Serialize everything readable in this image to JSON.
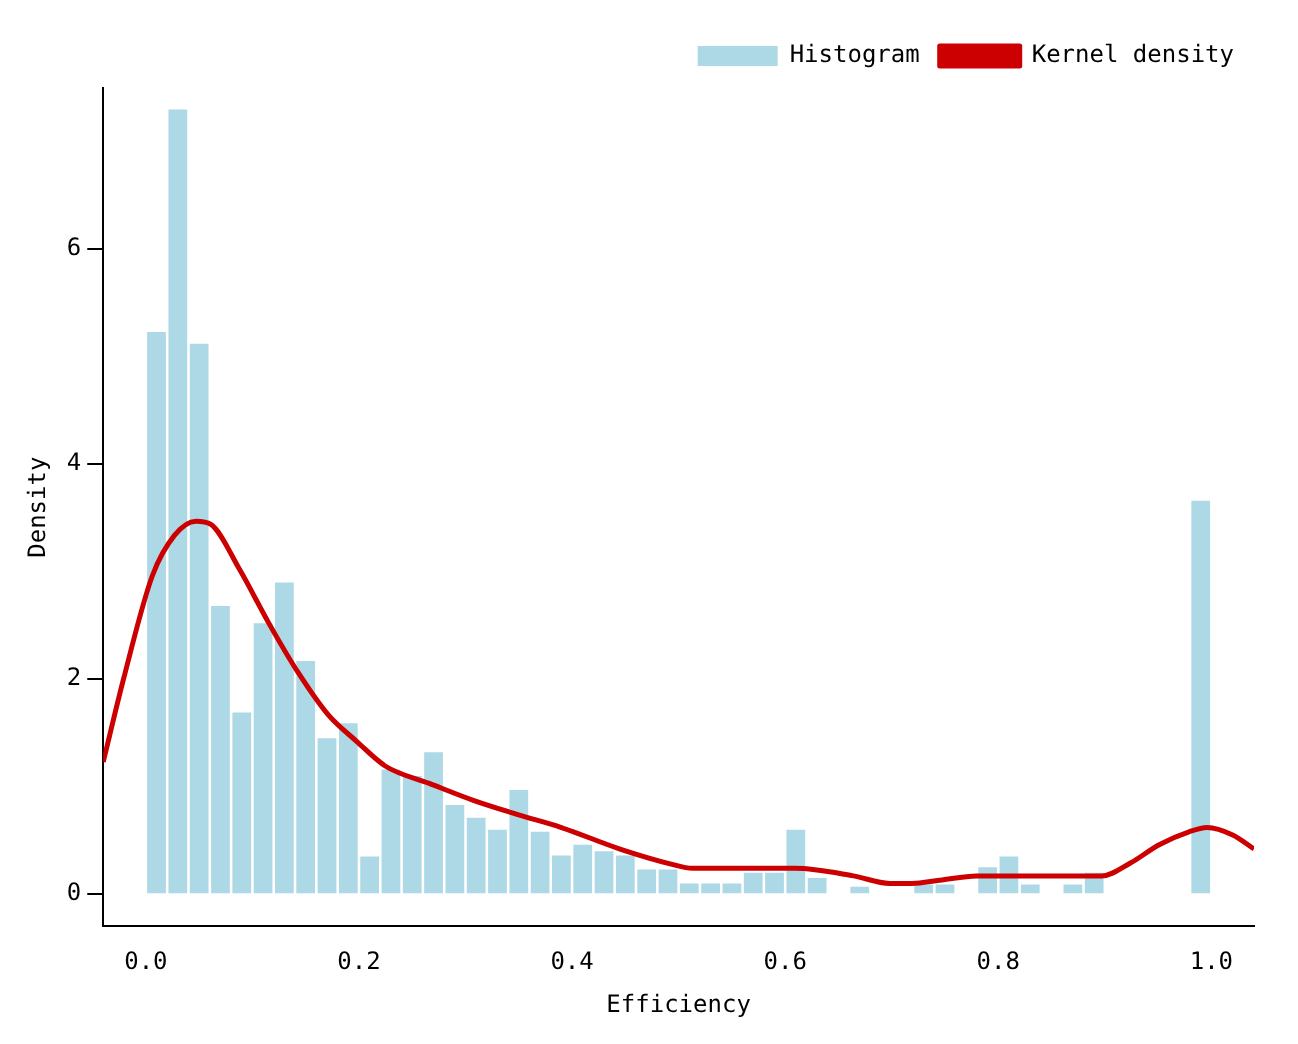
{
  "chart_data": {
    "type": "histogram",
    "xlabel": "Efficiency",
    "ylabel": "Density",
    "bins": [
      0,
      0.02,
      0.04,
      0.06,
      0.08,
      0.1,
      0.12,
      0.14,
      0.16,
      0.18,
      0.2,
      0.22,
      0.24,
      0.26,
      0.28,
      0.3,
      0.32,
      0.34,
      0.36,
      0.38,
      0.4,
      0.42,
      0.44,
      0.46,
      0.48,
      0.5,
      0.52,
      0.54,
      0.56,
      0.58,
      0.6,
      0.62,
      0.64,
      0.66,
      0.68,
      0.7,
      0.72,
      0.74,
      0.76,
      0.78,
      0.8,
      0.82,
      0.84,
      0.86,
      0.88,
      0.9,
      0.92,
      0.94,
      0.96,
      0.98,
      1.0
    ],
    "series": [
      {
        "name": "Histogram",
        "color": "#add8e6",
        "values": [
          5.23,
          7.3,
          5.12,
          2.68,
          1.69,
          2.52,
          2.9,
          2.17,
          1.45,
          1.59,
          0.35,
          1.16,
          1.1,
          1.32,
          0.83,
          0.71,
          0.6,
          0.97,
          0.58,
          0.36,
          0.46,
          0.4,
          0.36,
          0.23,
          0.23,
          0.1,
          0.1,
          0.1,
          0.2,
          0.2,
          0.6,
          0.15,
          0,
          0.07,
          0,
          0,
          0.09,
          0.09,
          0,
          0.25,
          0.35,
          0.09,
          0,
          0.09,
          0.2,
          0,
          0,
          0,
          0,
          3.66
        ]
      },
      {
        "name": "Kernel density",
        "type": "line",
        "color": "#cc0000",
        "x": [
          -0.04,
          -0.021,
          0.006,
          0.027,
          0.047,
          0.061,
          0.088,
          0.116,
          0.143,
          0.171,
          0.198,
          0.225,
          0.266,
          0.308,
          0.349,
          0.39,
          0.445,
          0.493,
          0.513,
          0.609,
          0.664,
          0.698,
          0.719,
          0.745,
          0.78,
          0.897,
          0.924,
          0.951,
          0.979,
          0.996,
          1.02,
          1.04
        ],
        "values": [
          1.23,
          2.0,
          2.96,
          3.34,
          3.47,
          3.44,
          3.02,
          2.51,
          2.06,
          1.67,
          1.42,
          1.19,
          1.03,
          0.87,
          0.74,
          0.62,
          0.42,
          0.28,
          0.24,
          0.24,
          0.17,
          0.1,
          0.1,
          0.13,
          0.17,
          0.17,
          0.29,
          0.46,
          0.58,
          0.62,
          0.55,
          0.42
        ]
      }
    ],
    "xlim": [
      -0.04,
      1.04
    ],
    "xticks": [
      {
        "value": 0,
        "label": "0.0"
      },
      0.2,
      0.4,
      0.6,
      0.8,
      {
        "value": 1,
        "label": "1.0"
      }
    ],
    "ylim": [
      -0.3,
      7.5
    ],
    "yticks": [
      0,
      2,
      4,
      6
    ],
    "grid": false,
    "legend": "top right"
  }
}
